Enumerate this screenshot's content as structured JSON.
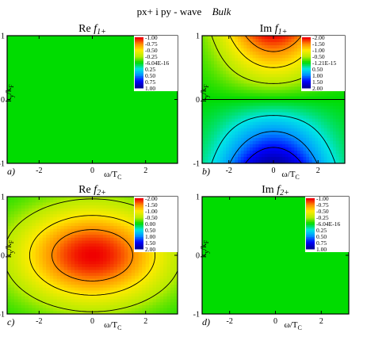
{
  "figure": {
    "title_parts": [
      "px+ i py - wave",
      "Bulk"
    ]
  },
  "chart_data": [
    {
      "type": "heatmap",
      "panel_label": "a)",
      "title_prefix": "Re",
      "title_func": "f",
      "title_sub": "1+",
      "xlabel": "ω/T",
      "xlabel_sub": "C",
      "ylabel": "k",
      "ylabel_sub1": "y",
      "ylabel_mid": "/k",
      "ylabel_sub2": "F",
      "xticks": [
        "-2",
        "0",
        "2"
      ],
      "yticks": [
        "1",
        "0",
        "-1"
      ],
      "xlim": [
        -3.2,
        3.2
      ],
      "ylim": [
        -1,
        1
      ],
      "legend_levels": [
        "-1.00",
        "-0.75",
        "-0.50",
        "-0.25",
        "-6.04E-16",
        "0.25",
        "0.50",
        "0.75",
        "1.00"
      ],
      "legend_range": [
        -1,
        1
      ],
      "field": "zero",
      "contours": []
    },
    {
      "type": "heatmap",
      "panel_label": "b)",
      "title_prefix": "Im",
      "title_func": "f",
      "title_sub": "1+",
      "xlabel": "ω/T",
      "xlabel_sub": "C",
      "ylabel": "k",
      "ylabel_sub1": "y",
      "ylabel_mid": "/k",
      "ylabel_sub2": "F",
      "xticks": [
        "-2",
        "0",
        "2"
      ],
      "yticks": [
        "1",
        "0",
        "-1"
      ],
      "xlim": [
        -3.2,
        3.2
      ],
      "ylim": [
        -1,
        1
      ],
      "legend_levels": [
        "-2.00",
        "-1.50",
        "-1.00",
        "-0.50",
        "-1.21E-15",
        "0.50",
        "1.00",
        "1.50",
        "2.00"
      ],
      "legend_range": [
        -2,
        2
      ],
      "field": "imf1",
      "contours": [
        -1.5,
        -1.0,
        -0.5,
        0.0,
        0.5,
        1.0,
        1.5
      ]
    },
    {
      "type": "heatmap",
      "panel_label": "c)",
      "title_prefix": "Re",
      "title_func": "f",
      "title_sub": "2+",
      "xlabel": "ω/T",
      "xlabel_sub": "C",
      "ylabel": "k",
      "ylabel_sub1": "y",
      "ylabel_mid": "/k",
      "ylabel_sub2": "F",
      "xticks": [
        "-2",
        "0",
        "2"
      ],
      "yticks": [
        "1",
        "0",
        "-1"
      ],
      "xlim": [
        -3.2,
        3.2
      ],
      "ylim": [
        -1,
        1
      ],
      "legend_levels": [
        "-2.00",
        "-1.50",
        "-1.00",
        "-0.50",
        "0.00",
        "0.50",
        "1.00",
        "1.50",
        "2.00"
      ],
      "legend_range": [
        -2,
        2
      ],
      "field": "ref2",
      "contours": [
        0.5,
        1.0,
        1.5
      ]
    },
    {
      "type": "heatmap",
      "panel_label": "d)",
      "title_prefix": "Im",
      "title_func": "f",
      "title_sub": "2+",
      "xlabel": "ω/T",
      "xlabel_sub": "C",
      "ylabel": "k",
      "ylabel_sub1": "y",
      "ylabel_mid": "/k",
      "ylabel_sub2": "F",
      "xticks": [
        "-2",
        "0",
        "2"
      ],
      "yticks": [
        "1",
        "0",
        "-1"
      ],
      "xlim": [
        -3.2,
        3.2
      ],
      "ylim": [
        -1,
        1
      ],
      "legend_levels": [
        "-1.00",
        "-0.75",
        "-0.50",
        "-0.25",
        "-6.04E-16",
        "0.25",
        "0.50",
        "0.75",
        "1.00"
      ],
      "legend_range": [
        -1,
        1
      ],
      "field": "zero",
      "contours": []
    }
  ]
}
